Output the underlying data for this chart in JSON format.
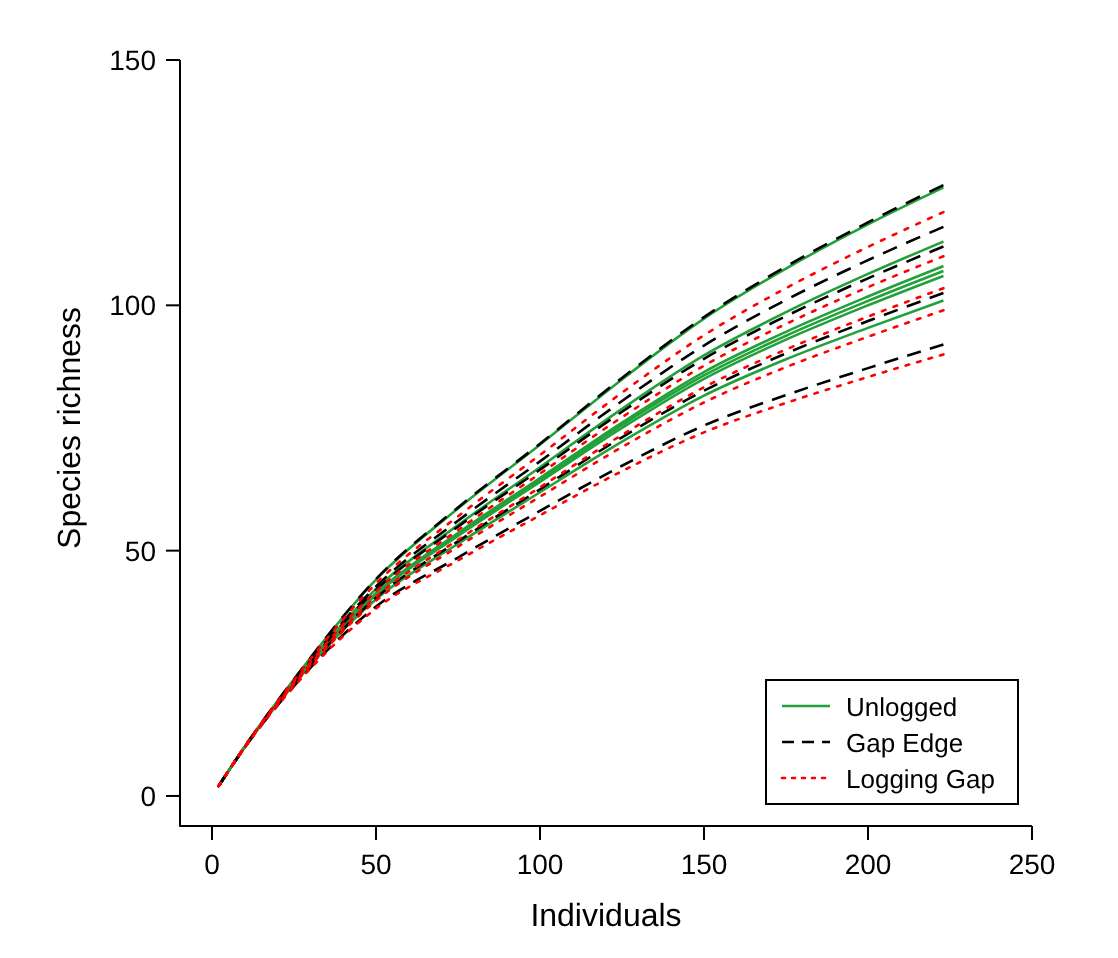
{
  "chart_data": {
    "type": "line",
    "xlabel": "Individuals",
    "ylabel": "Species richness",
    "xlim": [
      -10,
      250
    ],
    "ylim": [
      -6,
      150
    ],
    "xticks": [
      0,
      50,
      100,
      150,
      200,
      250
    ],
    "yticks": [
      0,
      50,
      100,
      150
    ],
    "grid": false,
    "legend": "bottom right",
    "marker": "none",
    "x": [
      2,
      10,
      25,
      50,
      75,
      100,
      125,
      150,
      175,
      200,
      223
    ],
    "series": [
      {
        "name": "Unlogged",
        "color": "#22a03a",
        "line_style": "solid",
        "values": [
          2,
          10.1,
          23.8,
          44.1,
          58.6,
          71.6,
          84.9,
          97.3,
          107.5,
          116.5,
          124
        ]
      },
      {
        "color": "#22a03a",
        "line_style": "solid",
        "values": [
          2,
          10,
          23.3,
          42.2,
          55.2,
          67,
          78.9,
          89.8,
          98.6,
          106.4,
          113
        ]
      },
      {
        "color": "#22a03a",
        "line_style": "solid",
        "values": [
          2,
          10,
          23.1,
          41.3,
          53.6,
          64.8,
          76.1,
          86.4,
          94.6,
          101.8,
          108
        ]
      },
      {
        "color": "#22a03a",
        "line_style": "solid",
        "values": [
          2,
          10,
          23,
          41.2,
          53.3,
          64.4,
          75.6,
          85.7,
          93.8,
          100.9,
          107
        ]
      },
      {
        "color": "#22a03a",
        "line_style": "solid",
        "values": [
          2,
          10,
          23,
          41,
          53,
          64,
          75,
          85,
          93,
          100,
          106
        ]
      },
      {
        "color": "#22a03a",
        "line_style": "solid",
        "values": [
          2,
          10,
          22.8,
          40.1,
          51.4,
          61.9,
          72.2,
          81.6,
          89,
          95.4,
          101
        ]
      },
      {
        "name": "Gap Edge",
        "color": "#000000",
        "line_style": "dashed",
        "values": [
          2,
          10.1,
          23.8,
          44.2,
          58.8,
          71.8,
          85.2,
          97.6,
          107.9,
          116.9,
          124.5
        ]
      },
      {
        "color": "#000000",
        "line_style": "dashed",
        "values": [
          2,
          10,
          23.4,
          42.7,
          56.1,
          68.2,
          80.5,
          91.8,
          101.1,
          109.2,
          116
        ]
      },
      {
        "color": "#000000",
        "line_style": "dashed",
        "values": [
          2,
          10,
          23.3,
          42,
          54.9,
          66.5,
          78.3,
          89.1,
          97.8,
          105.5,
          112
        ]
      },
      {
        "color": "#000000",
        "line_style": "dashed",
        "values": [
          2,
          10,
          22.8,
          40.4,
          51.9,
          62.5,
          73.1,
          82.6,
          90.2,
          96.8,
          102.5
        ]
      },
      {
        "color": "#000000",
        "line_style": "dashed",
        "values": [
          2,
          9.9,
          22.4,
          38.6,
          48.6,
          58.1,
          67.3,
          75.5,
          81.7,
          87.2,
          92
        ]
      },
      {
        "name": "Logging Gap",
        "color": "#ff0000",
        "line_style": "dotted",
        "values": [
          2,
          10.1,
          23.6,
          43.3,
          57,
          69.5,
          82.2,
          93.9,
          103.5,
          111.9,
          119
        ]
      },
      {
        "color": "#ff0000",
        "line_style": "dotted",
        "values": [
          2,
          10,
          23.2,
          41.7,
          54.2,
          65.7,
          77.2,
          87.7,
          96.2,
          103.7,
          110
        ]
      },
      {
        "color": "#ff0000",
        "line_style": "dotted",
        "values": [
          2,
          10,
          22.9,
          40.6,
          52.2,
          62.9,
          73.6,
          83.3,
          91,
          97.7,
          103.5
        ]
      },
      {
        "color": "#ff0000",
        "line_style": "dotted",
        "values": [
          2,
          10,
          22.7,
          39.8,
          50.8,
          61,
          71.1,
          80.2,
          87.4,
          93.6,
          99
        ]
      },
      {
        "color": "#ff0000",
        "line_style": "dotted",
        "values": [
          2,
          9.9,
          22.3,
          38.2,
          48,
          57.2,
          66.2,
          74.1,
          80.1,
          85.4,
          90
        ]
      }
    ]
  }
}
